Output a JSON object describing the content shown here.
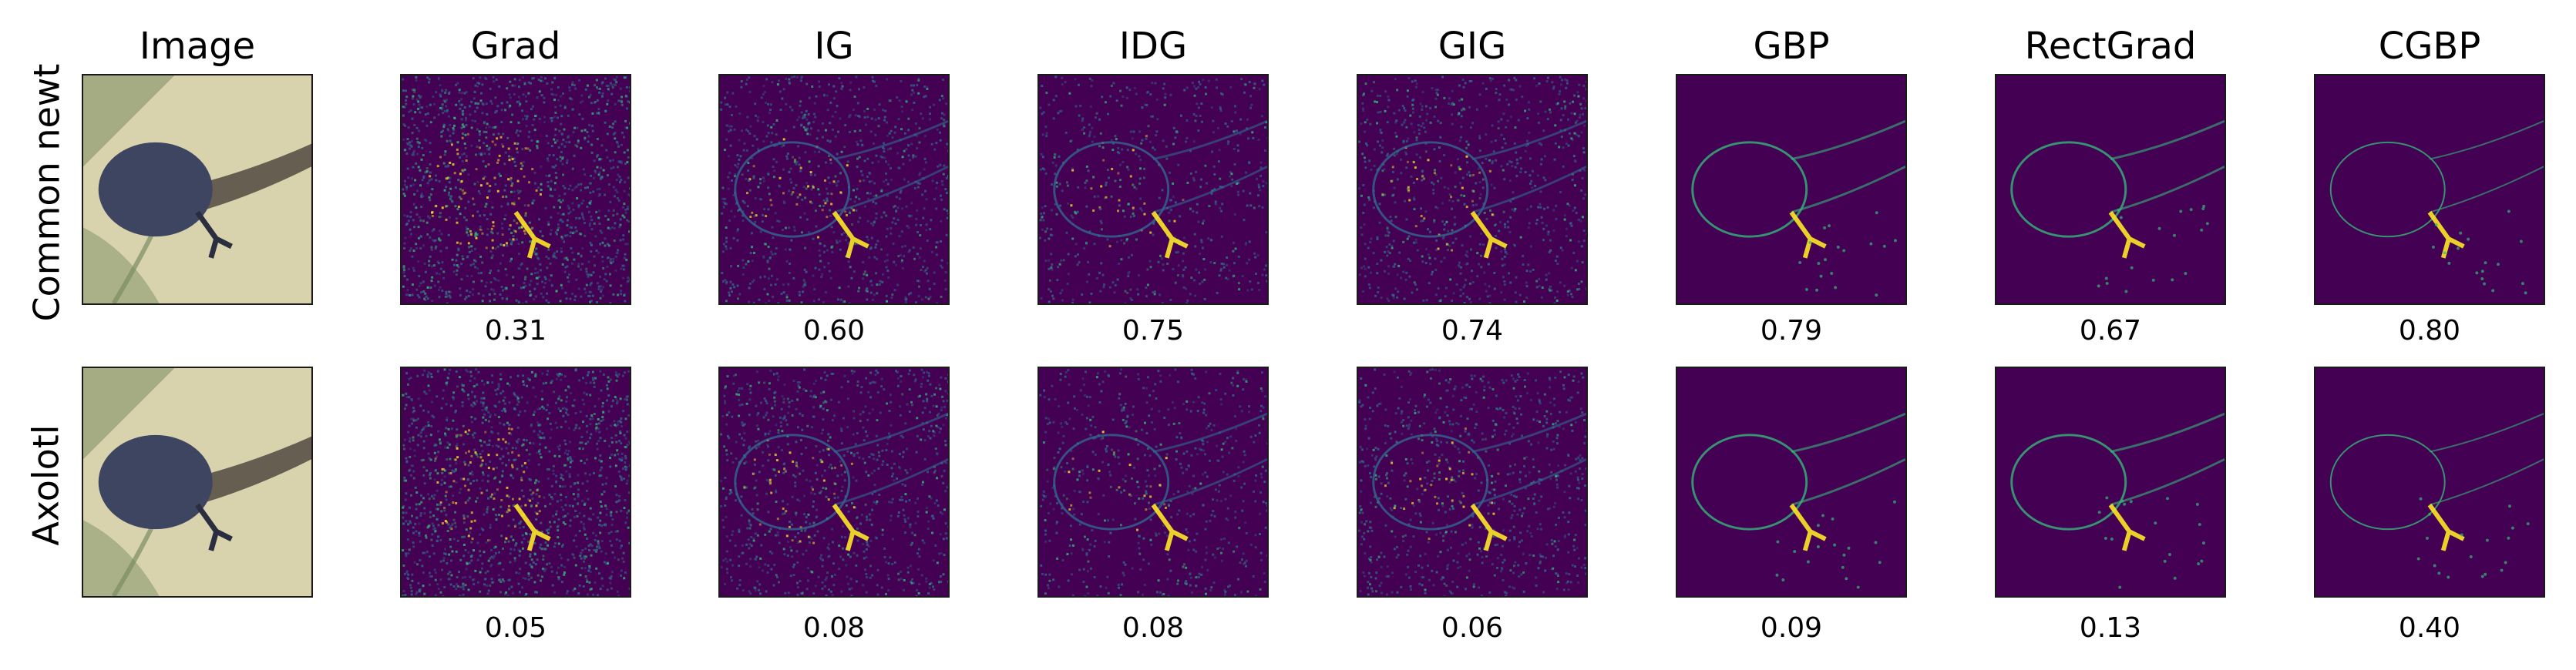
{
  "columns": [
    {
      "key": "image",
      "label": "Image"
    },
    {
      "key": "grad",
      "label": "Grad"
    },
    {
      "key": "ig",
      "label": "IG"
    },
    {
      "key": "idg",
      "label": "IDG"
    },
    {
      "key": "gig",
      "label": "GIG"
    },
    {
      "key": "gbp",
      "label": "GBP"
    },
    {
      "key": "rectgrad",
      "label": "RectGrad"
    },
    {
      "key": "cgbp",
      "label": "CGBP"
    }
  ],
  "rows": [
    {
      "label": "Common newt",
      "scores": [
        "0.31",
        "0.60",
        "0.75",
        "0.74",
        "0.79",
        "0.67",
        "0.80"
      ]
    },
    {
      "label": "Axolotl",
      "scores": [
        "0.05",
        "0.08",
        "0.08",
        "0.06",
        "0.09",
        "0.13",
        "0.40"
      ]
    }
  ],
  "colormap": {
    "low": "#440154",
    "mid": "#31688e",
    "high": "#35b779",
    "peak": "#fde725"
  },
  "photo_colors": {
    "background": "#d8d3ad",
    "body": "#3e4560",
    "tail": "#5b5148",
    "leaves": "#7b8d63"
  }
}
